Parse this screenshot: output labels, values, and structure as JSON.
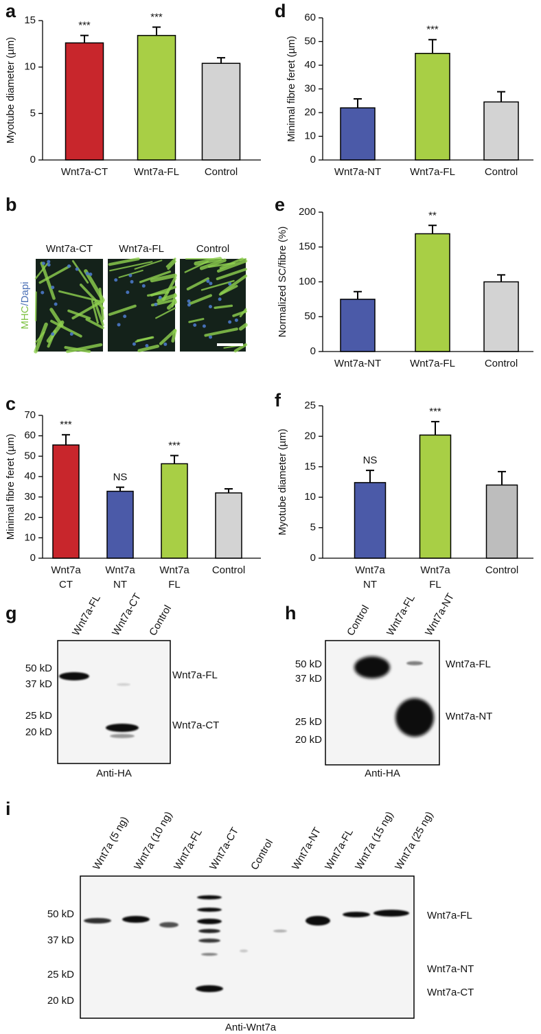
{
  "chart_data": [
    {
      "type": "bar",
      "panel": "a",
      "ylabel": "Myotube diameter (µm)",
      "categories": [
        [
          "Wnt7a-CT"
        ],
        [
          "Wnt7a-FL"
        ],
        [
          "Control"
        ]
      ],
      "values": [
        12.6,
        13.4,
        10.4
      ],
      "errors": [
        0.8,
        0.9,
        0.6
      ],
      "colors": [
        "#c8262c",
        "#a8cf45",
        "#d3d3d3"
      ],
      "annotations": [
        "***",
        "***",
        null
      ],
      "ylim": [
        0,
        15
      ],
      "yticks": [
        0,
        5,
        10,
        15
      ]
    },
    {
      "type": "bar",
      "panel": "c",
      "ylabel": "Minimal fibre feret (µm)",
      "categories": [
        [
          "Wnt7a",
          "CT"
        ],
        [
          "Wnt7a",
          "NT"
        ],
        [
          "Wnt7a",
          "FL"
        ],
        [
          "Control"
        ]
      ],
      "values": [
        55.5,
        32.8,
        46.3,
        32
      ],
      "errors": [
        5,
        2,
        4,
        2
      ],
      "colors": [
        "#c8262c",
        "#4b5aa8",
        "#a8cf45",
        "#d3d3d3"
      ],
      "annotations": [
        "***",
        "NS",
        "***",
        null
      ],
      "ylim": [
        0,
        70
      ],
      "yticks": [
        0,
        10,
        20,
        30,
        40,
        50,
        60,
        70
      ]
    },
    {
      "type": "bar",
      "panel": "d",
      "ylabel": "Minimal fibre feret (µm)",
      "categories": [
        [
          "Wnt7a-NT"
        ],
        [
          "Wnt7a-FL"
        ],
        [
          "Control"
        ]
      ],
      "values": [
        22,
        45,
        24.5
      ],
      "errors": [
        3.8,
        5.8,
        4.3
      ],
      "colors": [
        "#4b5aa8",
        "#a8cf45",
        "#d3d3d3"
      ],
      "annotations": [
        null,
        "***",
        null
      ],
      "ylim": [
        0,
        60
      ],
      "yticks": [
        0,
        10,
        20,
        30,
        40,
        50,
        60
      ]
    },
    {
      "type": "bar",
      "panel": "e",
      "ylabel": "Normalized SC/fibre (%)",
      "categories": [
        [
          "Wnt7a-NT"
        ],
        [
          "Wnt7a-FL"
        ],
        [
          "Control"
        ]
      ],
      "values": [
        75,
        169,
        100
      ],
      "errors": [
        11,
        12,
        10
      ],
      "colors": [
        "#4b5aa8",
        "#a8cf45",
        "#d3d3d3"
      ],
      "annotations": [
        null,
        "**",
        null
      ],
      "ylim": [
        0,
        200
      ],
      "yticks": [
        0,
        50,
        100,
        150,
        200
      ]
    },
    {
      "type": "bar",
      "panel": "f",
      "ylabel": "Myotube diameter (µm)",
      "categories": [
        [
          "Wnt7a",
          "NT"
        ],
        [
          "Wnt7a",
          "FL"
        ],
        [
          "Control"
        ]
      ],
      "values": [
        12.4,
        20.2,
        12
      ],
      "errors": [
        2,
        2.2,
        2.2
      ],
      "colors": [
        "#4b5aa8",
        "#a8cf45",
        "#bdbdbd"
      ],
      "annotations": [
        "NS",
        "***",
        null
      ],
      "ylim": [
        0,
        25
      ],
      "yticks": [
        0,
        5,
        10,
        15,
        20,
        25
      ]
    }
  ],
  "micrographs": {
    "panel": "b",
    "conditions": [
      "Wnt7a-CT",
      "Wnt7a-FL",
      "Control"
    ],
    "stain": [
      "MHC",
      "/Dapi"
    ]
  },
  "blots": [
    {
      "panel": "g",
      "lanes": [
        "Wnt7a-FL",
        "Wnt7a-CT",
        "Control"
      ],
      "markers": [
        "50 kD",
        "37 kD",
        "25 kD",
        "20 kD"
      ],
      "bands": [
        "Wnt7a-FL",
        "Wnt7a-CT"
      ],
      "antibody": "Anti-HA"
    },
    {
      "panel": "h",
      "lanes": [
        "Control",
        "Wnt7a-FL",
        "Wnt7a-NT"
      ],
      "markers": [
        "50 kD",
        "37 kD",
        "25 kD",
        "20 kD"
      ],
      "bands": [
        "Wnt7a-FL",
        "Wnt7a-NT"
      ],
      "antibody": "Anti-HA"
    },
    {
      "panel": "i",
      "lanes": [
        "Wnt7a (5 ng)",
        "Wnt7a (10 ng)",
        "Wnt7a-FL",
        "Wnt7a-CT",
        "Control",
        "Wnt7a-NT",
        "Wnt7a-FL",
        "Wnt7a (15 ng)",
        "Wnt7a (25 ng)"
      ],
      "markers": [
        "50 kD",
        "37 kD",
        "25 kD",
        "20 kD"
      ],
      "bands": [
        "Wnt7a-FL",
        "Wnt7a-NT",
        "Wnt7a-CT"
      ],
      "antibody": "Anti-Wnt7a"
    }
  ]
}
